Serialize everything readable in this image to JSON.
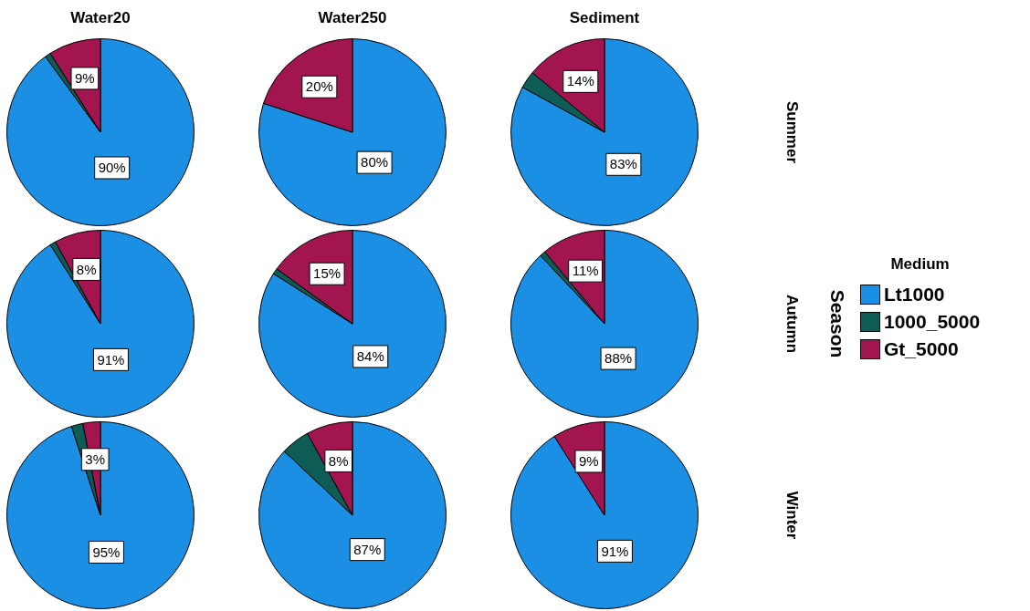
{
  "chart_data": [
    {
      "type": "pie",
      "title": "Water20",
      "categories": [
        null,
        null,
        null
      ],
      "values": [
        90,
        1,
        9
      ],
      "colors": [
        "#1a8fe3",
        "#0d5c55",
        "#a3154f"
      ],
      "value_labels": [
        "90%",
        null,
        "9%"
      ]
    },
    {
      "type": "pie",
      "title": "Water250",
      "categories": [
        null,
        null,
        null
      ],
      "values": [
        80,
        0,
        20
      ],
      "colors": [
        "#1a8fe3",
        "#0d5c55",
        "#a3154f"
      ],
      "value_labels": [
        "80%",
        null,
        "20%"
      ]
    },
    {
      "type": "pie",
      "title": "Sediment",
      "categories": [
        null,
        null,
        null
      ],
      "values": [
        83,
        3,
        14
      ],
      "colors": [
        "#1a8fe3",
        "#0d5c55",
        "#a3154f"
      ],
      "value_labels": [
        "83%",
        null,
        "14%"
      ],
      "annotations": [
        "Summer"
      ]
    },
    {
      "type": "pie",
      "categories": [
        null,
        null,
        null
      ],
      "values": [
        91,
        1,
        8
      ],
      "colors": [
        "#1a8fe3",
        "#0d5c55",
        "#a3154f"
      ],
      "value_labels": [
        "91%",
        null,
        "8%"
      ]
    },
    {
      "type": "pie",
      "categories": [
        null,
        null,
        null
      ],
      "values": [
        84,
        1,
        15
      ],
      "colors": [
        "#1a8fe3",
        "#0d5c55",
        "#a3154f"
      ],
      "value_labels": [
        "84%",
        null,
        "15%"
      ]
    },
    {
      "type": "pie",
      "categories": [
        "Lt1000",
        "1000_5000",
        "Gt_5000"
      ],
      "values": [
        88,
        1,
        11
      ],
      "colors": [
        "#1a8fe3",
        "#0d5c55",
        "#a3154f"
      ],
      "value_labels": [
        "88%",
        null,
        "11%"
      ],
      "annotations": [
        "Autumn",
        "Season"
      ],
      "legend": "right",
      "legend_title": "Medium"
    },
    {
      "type": "pie",
      "categories": [
        null,
        null,
        null
      ],
      "values": [
        95,
        2,
        3
      ],
      "colors": [
        "#1a8fe3",
        "#0d5c55",
        "#a3154f"
      ],
      "value_labels": [
        "95%",
        null,
        "3%"
      ]
    },
    {
      "type": "pie",
      "categories": [
        null,
        null,
        null
      ],
      "values": [
        87,
        5,
        8
      ],
      "colors": [
        "#1a8fe3",
        "#0d5c55",
        "#a3154f"
      ],
      "value_labels": [
        "87%",
        null,
        "8%"
      ]
    },
    {
      "type": "pie",
      "categories": [
        null,
        null,
        null
      ],
      "values": [
        91,
        0,
        9
      ],
      "colors": [
        "#1a8fe3",
        "#0d5c55",
        "#a3154f"
      ],
      "value_labels": [
        "91%",
        null,
        "9%"
      ],
      "annotations": [
        "Winter"
      ]
    }
  ]
}
